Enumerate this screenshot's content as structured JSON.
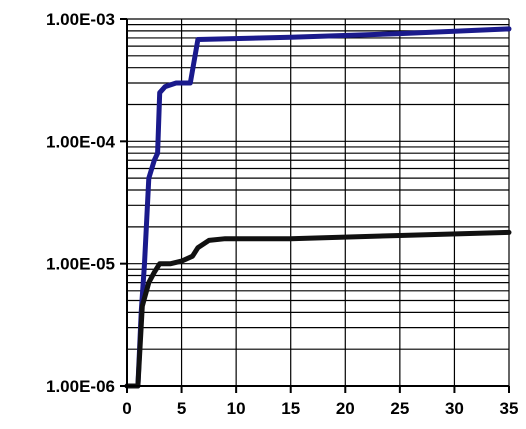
{
  "chart_data": {
    "type": "line",
    "title": "",
    "xlabel": "",
    "ylabel": "",
    "x_scale": "linear",
    "y_scale": "log",
    "xlim": [
      0,
      35
    ],
    "ylim": [
      1e-06,
      0.001
    ],
    "x_ticks": [
      0,
      5,
      10,
      15,
      20,
      25,
      30,
      35
    ],
    "x_tick_labels": [
      "0",
      "5",
      "10",
      "15",
      "20",
      "25",
      "30",
      "35"
    ],
    "y_ticks": [
      1e-06,
      1e-05,
      0.0001,
      0.001
    ],
    "y_tick_labels": [
      "1.00E-06",
      "1.00E-05",
      "1.00E-04",
      "1.00E-03"
    ],
    "grid": true,
    "legend": "none",
    "series": [
      {
        "color": "#1a1a8c",
        "points": [
          [
            0,
            1e-06
          ],
          [
            1.0,
            1e-06
          ],
          [
            1.3,
            4e-06
          ],
          [
            1.6,
            1e-05
          ],
          [
            2.0,
            5e-05
          ],
          [
            2.5,
            7e-05
          ],
          [
            2.8,
            8e-05
          ],
          [
            3.0,
            0.00025
          ],
          [
            3.5,
            0.00028
          ],
          [
            4.5,
            0.0003
          ],
          [
            5.8,
            0.0003
          ],
          [
            6.5,
            0.00068
          ],
          [
            15,
            0.00071
          ],
          [
            25,
            0.00076
          ],
          [
            35,
            0.00083
          ]
        ]
      },
      {
        "color": "#111111",
        "points": [
          [
            0,
            1e-06
          ],
          [
            1.0,
            1e-06
          ],
          [
            1.4,
            4.5e-06
          ],
          [
            2.0,
            7e-06
          ],
          [
            2.5,
            8.5e-06
          ],
          [
            3.0,
            1e-05
          ],
          [
            4.0,
            1e-05
          ],
          [
            5.0,
            1.05e-05
          ],
          [
            6.0,
            1.15e-05
          ],
          [
            6.5,
            1.35e-05
          ],
          [
            7.5,
            1.55e-05
          ],
          [
            9,
            1.6e-05
          ],
          [
            15,
            1.6e-05
          ],
          [
            25,
            1.7e-05
          ],
          [
            35,
            1.8e-05
          ]
        ]
      }
    ]
  }
}
